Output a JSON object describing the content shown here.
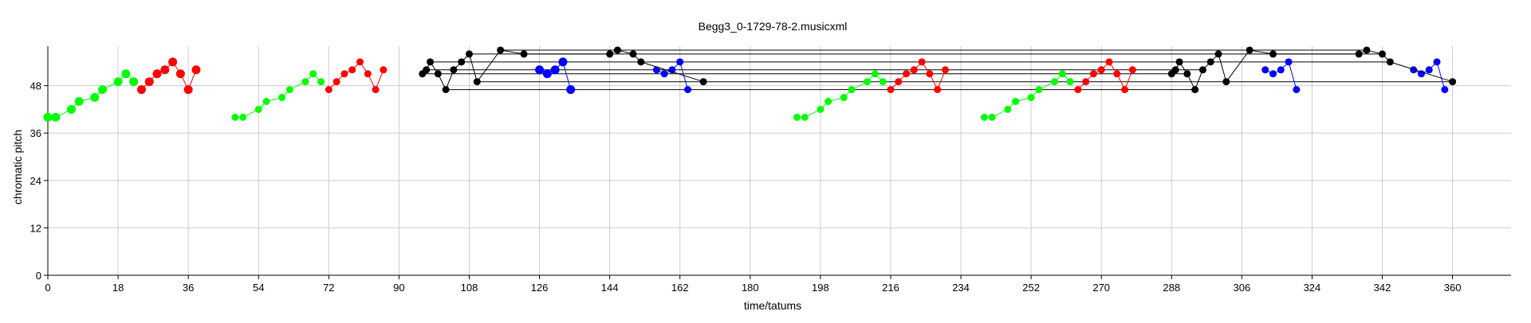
{
  "chart_data": {
    "type": "scatter",
    "title": "Begg3_0-1729-78-2.musicxml",
    "xlabel": "time/tatums",
    "ylabel": "chromatic pitch",
    "xlim": [
      0,
      375
    ],
    "ylim": [
      0,
      58
    ],
    "xticks": [
      0,
      18,
      36,
      54,
      72,
      90,
      108,
      126,
      144,
      162,
      180,
      198,
      216,
      234,
      252,
      270,
      288,
      306,
      324,
      342,
      360
    ],
    "yticks": [
      0,
      12,
      24,
      36,
      48
    ],
    "grid": true,
    "legend": "none",
    "colors": {
      "green": "#00ff00",
      "red": "#ff0000",
      "blue": "#0000ff",
      "black": "#000000",
      "grid": "#cccccc"
    },
    "series": [
      {
        "color": "green",
        "marker": "large",
        "points": [
          [
            0,
            40
          ],
          [
            2,
            40
          ],
          [
            6,
            42
          ],
          [
            8,
            44
          ],
          [
            12,
            45
          ],
          [
            14,
            47
          ],
          [
            18,
            49
          ],
          [
            20,
            51
          ],
          [
            22,
            49
          ]
        ]
      },
      {
        "color": "red",
        "marker": "large",
        "points": [
          [
            24,
            47
          ],
          [
            26,
            49
          ],
          [
            28,
            51
          ],
          [
            30,
            52
          ],
          [
            32,
            54
          ],
          [
            34,
            51
          ],
          [
            36,
            47
          ],
          [
            38,
            52
          ]
        ]
      },
      {
        "color": "green",
        "marker": "normal",
        "points": [
          [
            48,
            40
          ],
          [
            50,
            40
          ],
          [
            54,
            42
          ],
          [
            56,
            44
          ],
          [
            60,
            45
          ],
          [
            62,
            47
          ],
          [
            66,
            49
          ],
          [
            68,
            51
          ],
          [
            70,
            49
          ]
        ]
      },
      {
        "color": "red",
        "marker": "normal",
        "points": [
          [
            72,
            47
          ],
          [
            74,
            49
          ],
          [
            76,
            51
          ],
          [
            78,
            52
          ],
          [
            80,
            54
          ],
          [
            82,
            51
          ],
          [
            84,
            47
          ],
          [
            86,
            52
          ]
        ]
      },
      {
        "color": "green",
        "marker": "normal",
        "points": [
          [
            192,
            40
          ],
          [
            194,
            40
          ],
          [
            198,
            42
          ],
          [
            200,
            44
          ],
          [
            204,
            45
          ],
          [
            206,
            47
          ],
          [
            210,
            49
          ],
          [
            212,
            51
          ],
          [
            214,
            49
          ]
        ]
      },
      {
        "color": "red",
        "marker": "normal",
        "points": [
          [
            216,
            47
          ],
          [
            218,
            49
          ],
          [
            220,
            51
          ],
          [
            222,
            52
          ],
          [
            224,
            54
          ],
          [
            226,
            51
          ],
          [
            228,
            47
          ],
          [
            230,
            52
          ]
        ]
      },
      {
        "color": "green",
        "marker": "normal",
        "points": [
          [
            240,
            40
          ],
          [
            242,
            40
          ],
          [
            246,
            42
          ],
          [
            248,
            44
          ],
          [
            252,
            45
          ],
          [
            254,
            47
          ],
          [
            258,
            49
          ],
          [
            260,
            51
          ],
          [
            262,
            49
          ]
        ]
      },
      {
        "color": "red",
        "marker": "normal",
        "points": [
          [
            264,
            47
          ],
          [
            266,
            49
          ],
          [
            268,
            51
          ],
          [
            270,
            52
          ],
          [
            272,
            54
          ],
          [
            274,
            51
          ],
          [
            276,
            47
          ],
          [
            278,
            52
          ]
        ]
      },
      {
        "color": "blue",
        "marker": "large",
        "points": [
          [
            126,
            52
          ],
          [
            128,
            51
          ],
          [
            130,
            52
          ],
          [
            132,
            54
          ],
          [
            134,
            47
          ]
        ]
      },
      {
        "color": "blue",
        "marker": "normal",
        "points": [
          [
            156,
            52
          ],
          [
            158,
            51
          ],
          [
            160,
            52
          ],
          [
            162,
            54
          ],
          [
            164,
            47
          ]
        ]
      },
      {
        "color": "blue",
        "marker": "normal",
        "points": [
          [
            312,
            52
          ],
          [
            314,
            51
          ],
          [
            316,
            52
          ],
          [
            318,
            54
          ],
          [
            320,
            47
          ]
        ]
      },
      {
        "color": "blue",
        "marker": "normal",
        "points": [
          [
            350,
            52
          ],
          [
            352,
            51
          ],
          [
            354,
            52
          ],
          [
            356,
            54
          ],
          [
            358,
            47
          ]
        ]
      },
      {
        "color": "black",
        "marker": "normal",
        "points": [
          [
            96,
            51
          ],
          [
            97,
            52
          ],
          [
            98,
            54
          ],
          [
            100,
            51
          ],
          [
            102,
            47
          ],
          [
            104,
            52
          ],
          [
            106,
            54
          ],
          [
            108,
            56
          ],
          [
            110,
            49
          ],
          [
            116,
            57
          ],
          [
            122,
            56
          ],
          [
            144,
            56
          ],
          [
            146,
            57
          ],
          [
            150,
            56
          ],
          [
            152,
            54
          ],
          [
            168,
            49
          ]
        ]
      },
      {
        "color": "black",
        "marker": "normal",
        "points": [
          [
            288,
            51
          ],
          [
            289,
            52
          ],
          [
            290,
            54
          ],
          [
            292,
            51
          ],
          [
            294,
            47
          ],
          [
            296,
            52
          ],
          [
            298,
            54
          ],
          [
            300,
            56
          ],
          [
            302,
            49
          ],
          [
            308,
            57
          ],
          [
            314,
            56
          ],
          [
            336,
            56
          ],
          [
            338,
            57
          ],
          [
            342,
            56
          ],
          [
            344,
            54
          ],
          [
            360,
            49
          ]
        ]
      }
    ],
    "hlines": [
      {
        "y": 57,
        "x1": 116,
        "x2": 338
      },
      {
        "y": 56,
        "x1": 108,
        "x2": 342
      },
      {
        "y": 54,
        "x1": 98,
        "x2": 344
      },
      {
        "y": 52,
        "x1": 97,
        "x2": 296
      },
      {
        "y": 51,
        "x1": 96,
        "x2": 292
      },
      {
        "y": 49,
        "x1": 110,
        "x2": 360
      },
      {
        "y": 47,
        "x1": 102,
        "x2": 294
      }
    ]
  }
}
